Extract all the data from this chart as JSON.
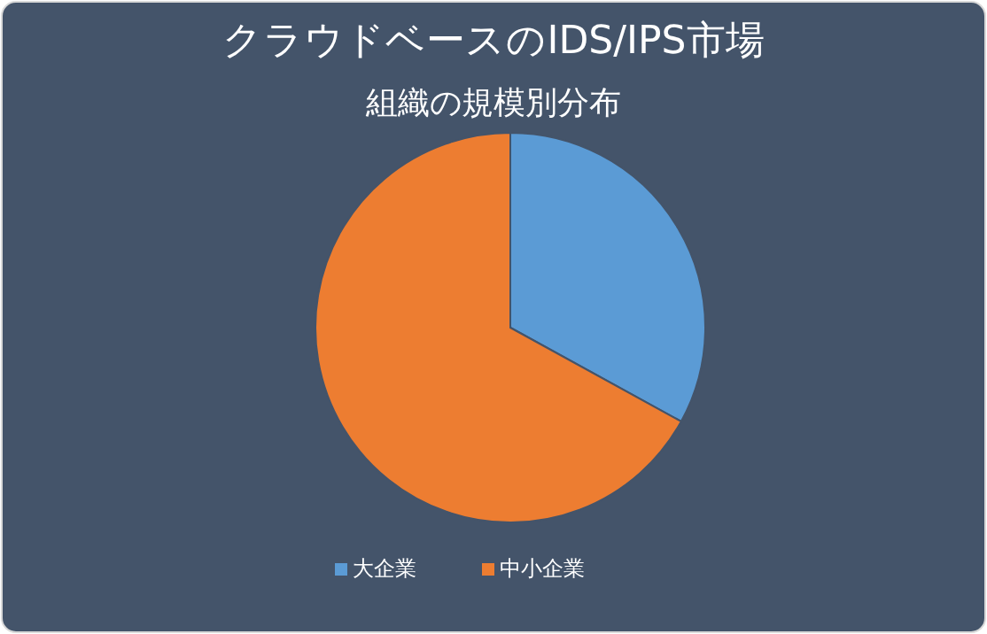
{
  "chart_data": {
    "type": "pie",
    "title": "クラウドベースのIDS/IPS市場",
    "subtitle": "組織の規模別分布",
    "categories": [
      "大企業",
      "中小企業"
    ],
    "values": [
      33,
      67
    ],
    "colors": [
      "#5b9bd5",
      "#ed7d31"
    ],
    "legend": "bottom"
  }
}
